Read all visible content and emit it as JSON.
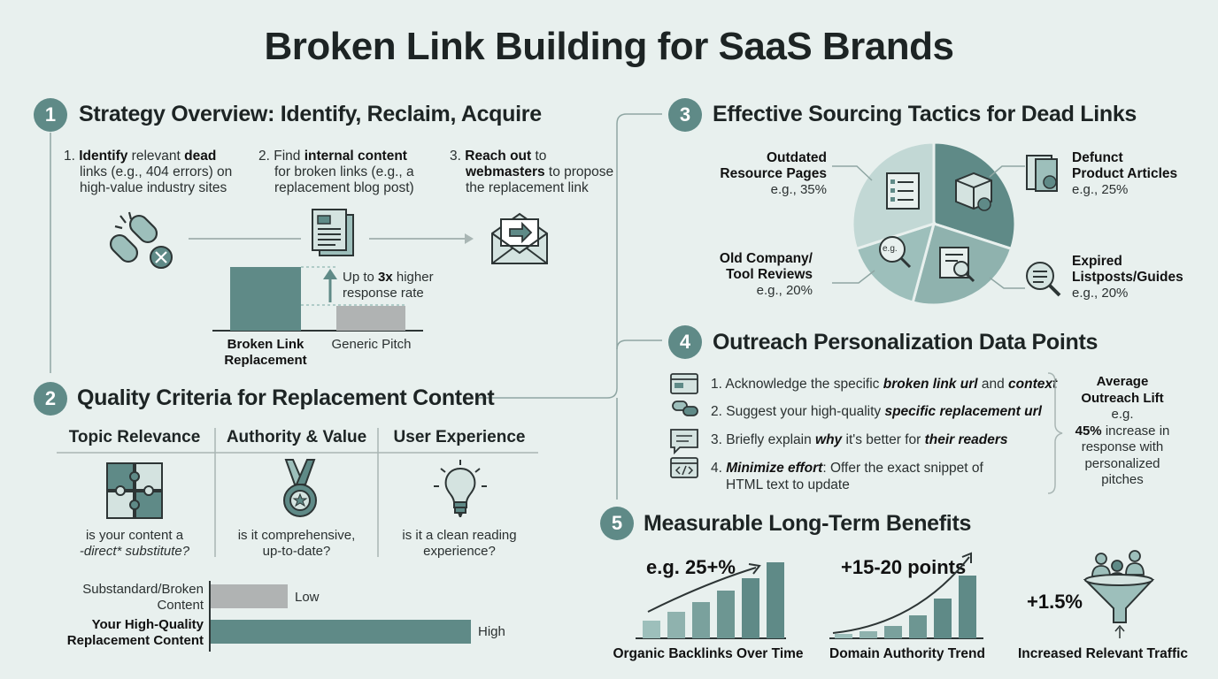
{
  "title": "Broken Link Building for SaaS Brands",
  "colors": {
    "accent": "#5f8a87",
    "accent_light": "#9dbfbb",
    "gray": "#b0b3b3",
    "background": "#e8f0ee"
  },
  "s1": {
    "number": "1",
    "title": "Strategy Overview: Identify, Reclaim, Acquire",
    "steps": [
      {
        "n": "1.",
        "bold": "Identify",
        "t1": " relevant ",
        "bold2": "dead",
        "t2": " links (e.g., 404 errors) on high-value industry sites"
      },
      {
        "n": "2.",
        "t0": " Find ",
        "bold": "internal content",
        "t1": " for broken links (e.g., a replacement blog post)"
      },
      {
        "n": "3.",
        "bold": "Reach out",
        "t1": " to ",
        "bold2": "webmasters",
        "t2": " to propose the replacement link"
      }
    ],
    "chart": {
      "annot_pre": "Up to ",
      "annot_bold": "3x",
      "annot_post": " higher response rate",
      "label_a": "Broken Link Replacement",
      "label_b": "Generic Pitch"
    }
  },
  "s2": {
    "number": "2",
    "title": "Quality Criteria for Replacement Content",
    "cols": [
      {
        "head": "Topic Relevance",
        "q1": "is your content a",
        "q2": "-direct* substitute?"
      },
      {
        "head": "Authority & Value",
        "q1": "is it comprehensive,",
        "q2": "up-to-date?"
      },
      {
        "head": "User Experience",
        "q1": "is it a clean reading",
        "q2": "experience?"
      }
    ],
    "bars": {
      "low_label_1": "Substandard/Broken",
      "low_label_2": "Content",
      "low_value": "Low",
      "high_label_1": "Your High-Quality",
      "high_label_2": "Replacement Content",
      "high_value": "High"
    }
  },
  "s3": {
    "number": "3",
    "title": "Effective Sourcing Tactics for Dead Links",
    "slices": [
      {
        "name1": "Outdated",
        "name2": "Resource Pages",
        "pct": "e.g., 35%"
      },
      {
        "name1": "Defunct",
        "name2": "Product Articles",
        "pct": "e.g., 25%"
      },
      {
        "name1": "Expired",
        "name2": "Listposts/Guides",
        "pct": "e.g., 20%"
      },
      {
        "name1": "Old Company/",
        "name2": "Tool Reviews",
        "pct": "e.g., 20%"
      }
    ],
    "eg_badge": "e.g."
  },
  "s4": {
    "number": "4",
    "title": "Outreach Personalization Data Points",
    "items": [
      {
        "pre": "1. Acknowledge the specific ",
        "b1": "broken link url",
        "mid": " and ",
        "b2": "context"
      },
      {
        "pre": "2. Suggest your high-quality ",
        "b1": "specific replacement url"
      },
      {
        "pre": "3. Briefly explain ",
        "b1": "why",
        "mid": " it's better for ",
        "b2": "their readers"
      },
      {
        "pre": "4. ",
        "b1": "Minimize effort",
        "mid": ": Offer the exact snippet of",
        "line2": "HTML text to update"
      }
    ],
    "lift": {
      "h1": "Average",
      "h2": "Outreach Lift",
      "eg": "e.g.",
      "bold": "45%",
      "rest1": " increase in",
      "rest2": "response with",
      "rest3": "personalized",
      "rest4": "pitches"
    }
  },
  "s5": {
    "number": "5",
    "title": "Measurable Long-Term Benefits",
    "c1": {
      "value": "e.g. 25+%",
      "caption": "Organic Backlinks Over Time"
    },
    "c2": {
      "value": "+15-20 points",
      "caption": "Domain Authority Trend"
    },
    "c3": {
      "value": "+1.5%",
      "caption": "Increased Relevant Traffic"
    }
  }
}
